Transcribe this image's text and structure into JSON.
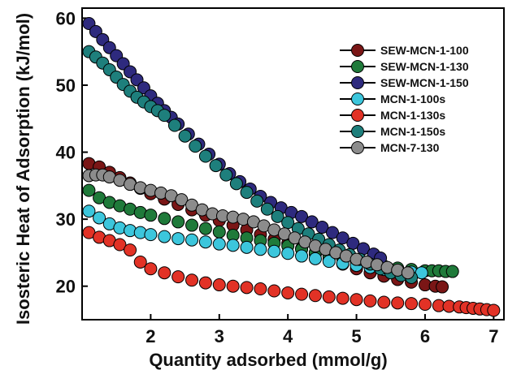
{
  "chart_data": {
    "type": "scatter",
    "xlabel": "Quantity adsorbed (mmol/g)",
    "ylabel": "Isosteric Heat of Adsorption (kJ/mol)",
    "xlim": [
      1.0,
      7.15
    ],
    "ylim": [
      15,
      61.5
    ],
    "xticks": [
      2,
      3,
      4,
      5,
      6,
      7
    ],
    "yticks": [
      20,
      30,
      40,
      50,
      60
    ],
    "legend_position": "top-right",
    "series": [
      {
        "name": "SEW-MCN-1-100",
        "color": "#7a1616",
        "x": [
          1.1,
          1.25,
          1.4,
          1.55,
          1.7,
          1.85,
          2.0,
          2.2,
          2.4,
          2.6,
          2.8,
          3.0,
          3.2,
          3.4,
          3.6,
          3.8,
          4.0,
          4.2,
          4.4,
          4.6,
          4.8,
          5.0,
          5.2,
          5.4,
          5.6,
          5.8,
          6.0,
          6.15,
          6.25
        ],
        "y": [
          38.3,
          37.8,
          37.0,
          36.2,
          35.4,
          34.6,
          33.8,
          33.0,
          32.2,
          31.4,
          30.6,
          29.8,
          29.1,
          28.4,
          27.7,
          27.0,
          26.4,
          25.6,
          24.8,
          24.0,
          23.3,
          22.6,
          22.0,
          21.5,
          21.0,
          20.6,
          20.2,
          20.0,
          19.9
        ]
      },
      {
        "name": "SEW-MCN-1-130",
        "color": "#1f7a3a",
        "x": [
          1.1,
          1.25,
          1.4,
          1.55,
          1.7,
          1.85,
          2.0,
          2.2,
          2.4,
          2.6,
          2.8,
          3.0,
          3.2,
          3.4,
          3.6,
          3.8,
          4.0,
          4.2,
          4.4,
          4.6,
          4.8,
          5.0,
          5.2,
          5.4,
          5.6,
          5.8,
          6.0,
          6.1,
          6.2,
          6.3,
          6.4
        ],
        "y": [
          34.3,
          33.2,
          32.5,
          32.0,
          31.5,
          31.0,
          30.6,
          30.1,
          29.6,
          29.1,
          28.6,
          28.1,
          27.6,
          27.2,
          26.8,
          26.4,
          26.0,
          25.5,
          25.0,
          24.5,
          24.1,
          23.7,
          23.3,
          23.0,
          22.7,
          22.5,
          22.3,
          22.3,
          22.3,
          22.2,
          22.2
        ]
      },
      {
        "name": "SEW-MCN-1-150",
        "color": "#2e2a7e",
        "x": [
          1.1,
          1.2,
          1.3,
          1.4,
          1.5,
          1.6,
          1.7,
          1.8,
          1.9,
          2.0,
          2.1,
          2.2,
          2.3,
          2.4,
          2.55,
          2.7,
          2.85,
          3.0,
          3.15,
          3.3,
          3.45,
          3.6,
          3.75,
          3.9,
          4.05,
          4.2,
          4.35,
          4.5,
          4.65,
          4.8,
          4.95,
          5.1,
          5.25,
          5.35
        ],
        "y": [
          59.2,
          58.0,
          56.8,
          55.6,
          54.4,
          53.2,
          52.0,
          50.8,
          49.6,
          48.4,
          47.3,
          46.2,
          45.2,
          44.2,
          42.7,
          41.2,
          39.7,
          38.2,
          36.8,
          35.6,
          34.5,
          33.4,
          32.5,
          31.7,
          31.0,
          30.4,
          29.6,
          28.8,
          28.0,
          27.2,
          26.4,
          25.6,
          24.8,
          24.2
        ]
      },
      {
        "name": "MCN-1-100s",
        "color": "#3cc6dc",
        "x": [
          1.1,
          1.25,
          1.4,
          1.55,
          1.7,
          1.85,
          2.0,
          2.2,
          2.4,
          2.6,
          2.8,
          3.0,
          3.2,
          3.4,
          3.6,
          3.8,
          4.0,
          4.2,
          4.4,
          4.6,
          4.8,
          5.0,
          5.2,
          5.4,
          5.6,
          5.8,
          5.95
        ],
        "y": [
          31.2,
          30.2,
          29.3,
          28.7,
          28.3,
          28.0,
          27.7,
          27.4,
          27.1,
          26.9,
          26.6,
          26.3,
          26.1,
          25.8,
          25.5,
          25.2,
          24.9,
          24.5,
          24.1,
          23.7,
          23.4,
          23.1,
          22.8,
          22.5,
          22.3,
          22.1,
          22.0
        ]
      },
      {
        "name": "MCN-1-130s",
        "color": "#e23226",
        "x": [
          1.1,
          1.25,
          1.4,
          1.55,
          1.7,
          1.85,
          2.0,
          2.2,
          2.4,
          2.6,
          2.8,
          3.0,
          3.2,
          3.4,
          3.6,
          3.8,
          4.0,
          4.2,
          4.4,
          4.6,
          4.8,
          5.0,
          5.2,
          5.4,
          5.6,
          5.8,
          6.0,
          6.2,
          6.35,
          6.5,
          6.6,
          6.7,
          6.8,
          6.9,
          7.0
        ],
        "y": [
          28.0,
          27.3,
          26.8,
          26.2,
          25.4,
          23.6,
          22.6,
          22.0,
          21.4,
          20.9,
          20.5,
          20.2,
          20.0,
          19.8,
          19.6,
          19.3,
          19.0,
          18.8,
          18.6,
          18.4,
          18.2,
          18.0,
          17.8,
          17.6,
          17.5,
          17.4,
          17.3,
          17.1,
          17.0,
          16.9,
          16.8,
          16.7,
          16.6,
          16.5,
          16.4
        ]
      },
      {
        "name": "MCN-1-150s",
        "color": "#1e7f7c",
        "x": [
          1.1,
          1.2,
          1.3,
          1.4,
          1.5,
          1.6,
          1.7,
          1.8,
          1.9,
          2.0,
          2.1,
          2.2,
          2.35,
          2.5,
          2.65,
          2.8,
          2.95,
          3.1,
          3.25,
          3.4,
          3.55,
          3.7,
          3.85,
          4.0,
          4.15,
          4.3,
          4.45,
          4.6,
          4.75,
          4.9,
          5.05,
          5.2,
          5.35,
          5.5,
          5.65,
          5.8
        ],
        "y": [
          55.0,
          54.2,
          53.3,
          52.3,
          51.2,
          50.1,
          49.1,
          48.2,
          47.5,
          46.8,
          46.2,
          45.5,
          44.0,
          42.4,
          40.9,
          39.4,
          38.0,
          36.6,
          35.3,
          34.0,
          32.7,
          31.5,
          30.4,
          29.5,
          28.6,
          27.8,
          27.0,
          26.2,
          25.4,
          24.7,
          24.0,
          23.3,
          22.6,
          22.0,
          21.6,
          21.3
        ]
      },
      {
        "name": "MCN-7-130",
        "color": "#8c8c8c",
        "x": [
          1.1,
          1.2,
          1.3,
          1.4,
          1.55,
          1.7,
          1.85,
          2.0,
          2.15,
          2.3,
          2.45,
          2.6,
          2.75,
          2.9,
          3.05,
          3.2,
          3.35,
          3.5,
          3.65,
          3.8,
          3.95,
          4.1,
          4.25,
          4.4,
          4.55,
          4.7,
          4.85,
          5.0,
          5.15,
          5.3,
          5.45,
          5.6,
          5.75
        ],
        "y": [
          36.5,
          36.6,
          36.6,
          36.3,
          35.8,
          35.2,
          34.7,
          34.3,
          33.9,
          33.5,
          32.9,
          32.1,
          31.4,
          30.8,
          30.5,
          30.3,
          30.0,
          29.6,
          29.0,
          28.4,
          27.8,
          27.2,
          26.6,
          26.0,
          25.5,
          25.0,
          24.5,
          24.0,
          23.6,
          23.2,
          22.8,
          22.4,
          22.0
        ]
      }
    ]
  }
}
